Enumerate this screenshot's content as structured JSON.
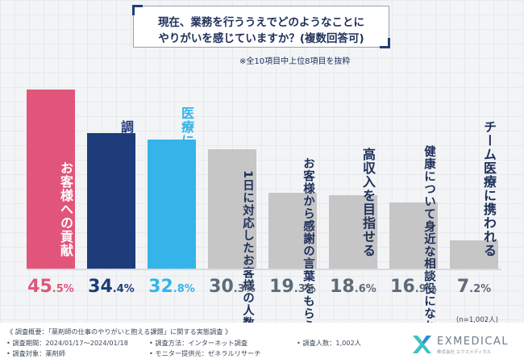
{
  "title": {
    "line1": "現在、業務を行ううえでどのようなことに",
    "line2": "やりがいを感じていますか？(複数回答可)"
  },
  "subtitle": "※全10項目中上位8項目を抜粋",
  "n_note": "(n=1,002人)",
  "chart_data": {
    "type": "bar",
    "title": "現在、業務を行ううえでどのようなことにやりがいを感じていますか？(複数回答可)",
    "unit": "%",
    "ylim": [
      0,
      50
    ],
    "categories": [
      "お客様への貢献",
      "調剤スキルが身に付く",
      "医療に幅広く貢献できる",
      "1日に対応したお客様の人数",
      "お客様から感謝の言葉をもらえる",
      "高収入を目指せる",
      "健康について身近な相談役になれる",
      "チーム医療に携われる"
    ],
    "values": [
      45.5,
      34.4,
      32.8,
      30.3,
      19.3,
      18.6,
      16.9,
      7.2
    ],
    "labels": [
      {
        "int": "45",
        "dec": ".5%"
      },
      {
        "int": "34",
        "dec": ".4%"
      },
      {
        "int": "32",
        "dec": ".8%"
      },
      {
        "int": "30",
        "dec": ".3%"
      },
      {
        "int": "19",
        "dec": ".3%"
      },
      {
        "int": "18",
        "dec": ".6%"
      },
      {
        "int": "16",
        "dec": ".9%"
      },
      {
        "int": "7",
        "dec": ".2%"
      }
    ],
    "bar_text": [
      [
        "お客様への貢献"
      ],
      [
        "調剤スキルが身に付く"
      ],
      [
        "医療に幅広く貢献できる"
      ],
      [
        "1日に対応した",
        "お客様の人数"
      ],
      [
        "お客様から感謝の",
        "言葉をもらえる"
      ],
      [
        "高収入を目指せる"
      ],
      [
        "健康について身近な",
        "相談役になれる"
      ],
      [
        "チーム医療に携われる"
      ]
    ],
    "colors": [
      "#e2557a",
      "#1e3b7a",
      "#35b4ea",
      "#c6c6c6",
      "#c6c6c6",
      "#c6c6c6",
      "#c6c6c6",
      "#c6c6c6"
    ],
    "value_colors": [
      "#e2557a",
      "#1e3b7a",
      "#35b4ea",
      "#5f6b78",
      "#5f6b78",
      "#5f6b78",
      "#5f6b78",
      "#5f6b78"
    ],
    "text_colors": [
      "#ffffff",
      "#1e3b7a",
      "#35b4ea",
      "#1e2f5a",
      "#1e2f5a",
      "#1e2f5a",
      "#1e2f5a",
      "#1e2f5a"
    ]
  },
  "footer": {
    "overview": "《 調査概要：「薬剤師の仕事のやりがいと抱える課題」に関する実態調査 》",
    "period": "• 調査期間：2024/01/17～2024/01/18",
    "method": "• 調査方法：インターネット調査",
    "people": "• 調査人数：1,002人",
    "target": "• 調査対象：薬剤師",
    "provider": "• モニター提供元：ゼネラルリサーチ"
  },
  "logo": {
    "name": "EXMEDICAL",
    "sub": "株式会社 エクスメディカル"
  },
  "colors": {
    "bg": "#f2f4f6",
    "navy": "#1e2f5a",
    "pink": "#e2557a",
    "sky": "#35b4ea",
    "gray": "#c6c6c6"
  }
}
